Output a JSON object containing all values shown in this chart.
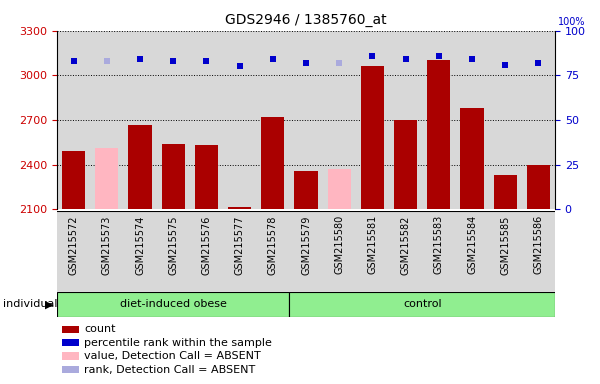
{
  "title": "GDS2946 / 1385760_at",
  "samples": [
    "GSM215572",
    "GSM215573",
    "GSM215574",
    "GSM215575",
    "GSM215576",
    "GSM215577",
    "GSM215578",
    "GSM215579",
    "GSM215580",
    "GSM215581",
    "GSM215582",
    "GSM215583",
    "GSM215584",
    "GSM215585",
    "GSM215586"
  ],
  "count_values": [
    2490,
    2510,
    2665,
    2540,
    2530,
    2115,
    2720,
    2360,
    2370,
    3060,
    2700,
    3100,
    2780,
    2330,
    2400
  ],
  "count_absent": [
    false,
    true,
    false,
    false,
    false,
    false,
    false,
    false,
    true,
    false,
    false,
    false,
    false,
    false,
    false
  ],
  "rank_values": [
    83,
    83,
    84,
    83,
    83,
    80,
    84,
    82,
    82,
    86,
    84,
    86,
    84,
    81,
    82
  ],
  "rank_absent": [
    false,
    true,
    false,
    false,
    false,
    false,
    false,
    false,
    true,
    false,
    false,
    false,
    false,
    false,
    false
  ],
  "groups": [
    "diet-induced obese",
    "diet-induced obese",
    "diet-induced obese",
    "diet-induced obese",
    "diet-induced obese",
    "diet-induced obese",
    "diet-induced obese",
    "control",
    "control",
    "control",
    "control",
    "control",
    "control",
    "control",
    "control"
  ],
  "ylim_left": [
    2100,
    3300
  ],
  "ylim_right": [
    0,
    100
  ],
  "yticks_left": [
    2100,
    2400,
    2700,
    3000,
    3300
  ],
  "yticks_right": [
    0,
    25,
    50,
    75,
    100
  ],
  "bar_color_present": "#AA0000",
  "bar_color_absent": "#FFB6C1",
  "rank_color_present": "#0000CC",
  "rank_color_absent": "#AAAADD",
  "background_plot": "#D8D8D8",
  "green_color": "#90EE90",
  "group_label_obese": "diet-induced obese",
  "group_label_control": "control",
  "individual_label": "individual",
  "title_fontsize": 10,
  "legend_items": [
    {
      "color": "#AA0000",
      "label": "count"
    },
    {
      "color": "#0000CC",
      "label": "percentile rank within the sample"
    },
    {
      "color": "#FFB6C1",
      "label": "value, Detection Call = ABSENT"
    },
    {
      "color": "#AAAADD",
      "label": "rank, Detection Call = ABSENT"
    }
  ]
}
